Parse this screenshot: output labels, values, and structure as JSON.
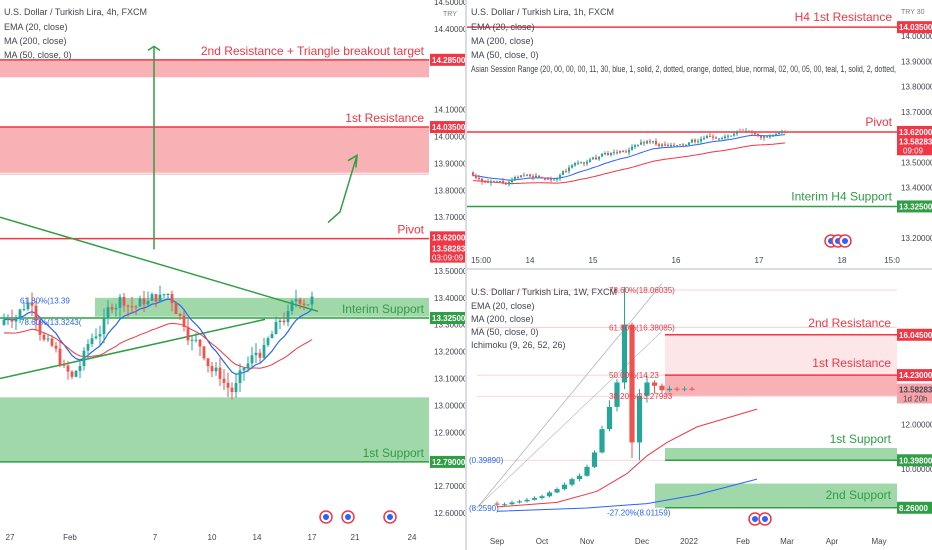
{
  "colors": {
    "resistance": "#f23645",
    "resistance_fill": "#f7a3a8",
    "support": "#2f9e44",
    "support_fill": "#8fd19a",
    "ema": "#2962ff",
    "ma200": "#f23645",
    "ma50": "#f5a623",
    "price_tag": "#f23645"
  },
  "panels": [
    {
      "id": "left",
      "symbol_line": "U.S. Dollar / Turkish Lira, 4h, FXCM",
      "indicators": [
        "EMA (20, close)",
        "MA (200, close)",
        "MA (50, close, 0)"
      ],
      "levels": [
        {
          "label": "2nd Resistance + Triangle breakout target",
          "price": "14.28500",
          "kind": "resistance"
        },
        {
          "label": "1st Resistance",
          "price": "14.03500",
          "kind": "resistance"
        },
        {
          "label": "Pivot",
          "price": "13.62000",
          "kind": "resistance"
        },
        {
          "label": "Interim Support",
          "price": "13.32500",
          "kind": "support"
        },
        {
          "label": "1st Support",
          "price": "12.79000",
          "kind": "support"
        }
      ],
      "last_price": "13.58283",
      "countdown": "03:09:09",
      "fib_labels": [
        "61.80%(13.39",
        "78.60%(13.3243("
      ],
      "x_ticks": [
        "27",
        "Feb",
        "7",
        "10",
        "14",
        "17",
        "21",
        "24"
      ]
    },
    {
      "id": "top-right",
      "symbol_line": "U.S. Dollar / Turkish Lira, 1h, FXCM",
      "indicators": [
        "EMA (20, close)",
        "MA (200, close)",
        "MA (50, close, 0)",
        "Asian Session Range (20, 00, 00, 00, 11, 30, blue, 1, solid, 2, dotted, orange, dotted, blue, normal, 02, 00, 05, 00, teal, 1, solid, 2, dotted,"
      ],
      "levels": [
        {
          "label": "H4 1st Resistance",
          "price": "14.03500",
          "kind": "resistance"
        },
        {
          "label": "Pivot",
          "price": "13.62000",
          "kind": "resistance"
        },
        {
          "label": "Interim H4 Support",
          "price": "13.32500",
          "kind": "support"
        }
      ],
      "last_price": "13.58283",
      "countdown": "09:09",
      "x_ticks": [
        "15:00",
        "14",
        "15",
        "16",
        "17",
        "18",
        "15:0"
      ]
    },
    {
      "id": "bottom-right",
      "symbol_line": "U.S. Dollar / Turkish Lira, 1W, FXCM",
      "indicators": [
        "EMA (20, close)",
        "MA (200, close)",
        "MA (50, close, 0)",
        "Ichimoku (9, 26, 52, 26)"
      ],
      "levels": [
        {
          "label": "2nd Resistance",
          "price": "16.04500",
          "kind": "resistance"
        },
        {
          "label": "1st Resistance",
          "price": "14.23000",
          "kind": "resistance"
        },
        {
          "label": "1st Support",
          "price": "10.39800",
          "kind": "support"
        },
        {
          "label": "2nd Support",
          "price": "8.26000",
          "kind": "support"
        }
      ],
      "last_price": "13.58283",
      "countdown": "1d 20h",
      "fib_labels": [
        "78.60%(18.06035)",
        "61.80%(16.38085)",
        "50.00%(14.23",
        "38.20%(13.27993",
        "(0.39890)",
        "(8.2590)",
        "-27.20%(8.01159)"
      ],
      "x_ticks": [
        "Sep",
        "Oct",
        "Nov",
        "Dec",
        "2022",
        "Feb",
        "Mar",
        "Apr",
        "May"
      ]
    }
  ],
  "axes": {
    "left_y_ticks": [
      "14.50000",
      "14.40000",
      "14.10000",
      "14.00000",
      "13.90000",
      "13.80000",
      "13.70000",
      "13.50000",
      "13.40000",
      "13.30000",
      "13.20000",
      "13.10000",
      "13.00000",
      "12.90000",
      "12.80000",
      "12.70000",
      "12.60000"
    ],
    "left_currency": "TRY",
    "top_right_y_ticks": [
      "14.00000",
      "13.90000",
      "13.80000",
      "13.70000",
      "13.50000",
      "13.40000",
      "13.20000"
    ],
    "top_right_currency": "TRY 30",
    "bottom_right_y_ticks": [
      "16.00000",
      "12.00000",
      "10.00000"
    ]
  },
  "chart_data": [
    {
      "type": "candlestick",
      "title": "U.S. Dollar / Turkish Lira, 4h, FXCM",
      "ylim": [
        12.55,
        14.55
      ],
      "x_ticks": [
        "27",
        "Feb",
        "7",
        "10",
        "14",
        "17",
        "21",
        "24"
      ],
      "levels": [
        14.285,
        14.035,
        13.62,
        13.325,
        12.79
      ],
      "last_price": 13.58283,
      "grid": false
    },
    {
      "type": "candlestick",
      "title": "U.S. Dollar / Turkish Lira, 1h, FXCM",
      "ylim": [
        13.15,
        14.15
      ],
      "x_ticks": [
        "15:00",
        "14",
        "15",
        "16",
        "17",
        "18",
        "15:0"
      ],
      "levels": [
        14.035,
        13.62,
        13.325
      ],
      "last_price": 13.58283,
      "grid": false
    },
    {
      "type": "candlestick",
      "title": "U.S. Dollar / Turkish Lira, 1W, FXCM",
      "ylim": [
        7.8,
        18.6
      ],
      "x_ticks": [
        "Sep",
        "Oct",
        "Nov",
        "Dec",
        "2022",
        "Feb",
        "Mar",
        "Apr",
        "May"
      ],
      "levels": [
        16.045,
        14.23,
        10.398,
        8.26
      ],
      "last_price": 13.58283,
      "grid": false
    }
  ]
}
